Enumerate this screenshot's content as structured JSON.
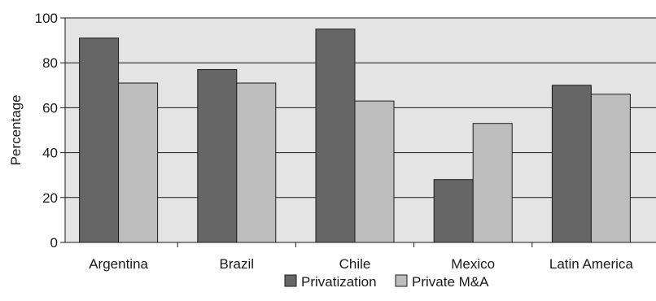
{
  "chart_data": {
    "type": "bar",
    "title": "",
    "xlabel": "",
    "ylabel": "Percentage",
    "ylim": [
      0,
      100
    ],
    "yticks": [
      0,
      20,
      40,
      60,
      80,
      100
    ],
    "grid": true,
    "legend_position": "bottom",
    "categories": [
      "Argentina",
      "Brazil",
      "Chile",
      "Mexico",
      "Latin America"
    ],
    "series": [
      {
        "name": "Privatization",
        "values": [
          91,
          77,
          95,
          28,
          70
        ],
        "color": "#666666"
      },
      {
        "name": "Private M&A",
        "values": [
          71,
          71,
          63,
          53,
          66
        ],
        "color": "#bdbdbd"
      }
    ],
    "plot_background": "#e4e4e4"
  }
}
